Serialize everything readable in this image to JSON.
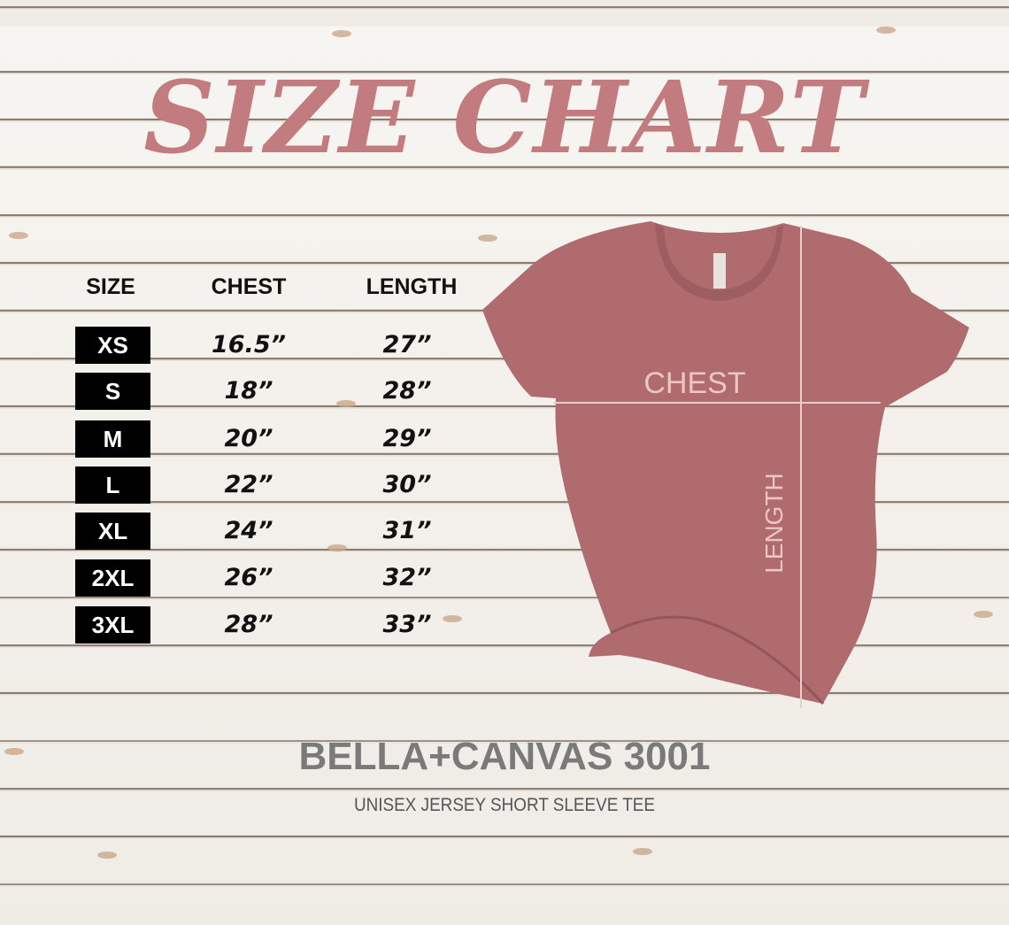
{
  "title": "SIZE CHART",
  "table": {
    "headers": [
      "SIZE",
      "CHEST",
      "LENGTH"
    ],
    "rows": [
      {
        "size": "XS",
        "chest": "16.5”",
        "length": "27”"
      },
      {
        "size": "S",
        "chest": "18”",
        "length": "28”"
      },
      {
        "size": "M",
        "chest": "20”",
        "length": "29”"
      },
      {
        "size": "L",
        "chest": "22”",
        "length": "30”"
      },
      {
        "size": "XL",
        "chest": "24”",
        "length": "31”"
      },
      {
        "size": "2XL",
        "chest": "26”",
        "length": "32”"
      },
      {
        "size": "3XL",
        "chest": "28”",
        "length": "33”"
      }
    ]
  },
  "shirt": {
    "chest_label": "CHEST",
    "length_label": "LENGTH",
    "color": "#b06b6f"
  },
  "brand": {
    "name": "BELLA+CANVAS 3001",
    "subtitle": "UNISEX JERSEY SHORT SLEEVE TEE"
  },
  "colors": {
    "title": "#c27c7f",
    "size_box": "#000000"
  }
}
